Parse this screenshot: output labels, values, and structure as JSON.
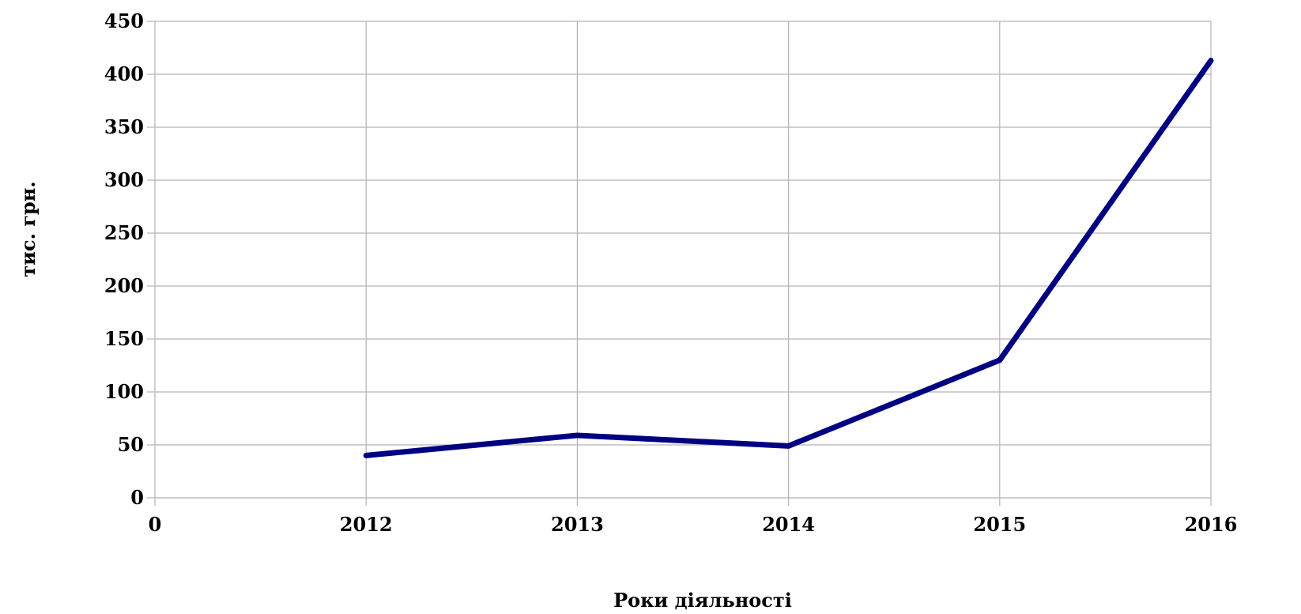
{
  "chart_data": {
    "type": "line",
    "title": "",
    "xlabel": "Роки діяльності",
    "ylabel": "тис. грн.",
    "x_ticks": [
      "0",
      "2012",
      "2013",
      "2014",
      "2015",
      "2016"
    ],
    "y_ticks": [
      "0",
      "50",
      "100",
      "150",
      "200",
      "250",
      "300",
      "350",
      "400",
      "450"
    ],
    "ylim": [
      0,
      450
    ],
    "grid": true,
    "legend": "none",
    "series": [
      {
        "color": "#000080",
        "points": [
          {
            "x": "2012",
            "y": 40
          },
          {
            "x": "2013",
            "y": 59
          },
          {
            "x": "2014",
            "y": 49
          },
          {
            "x": "2015",
            "y": 130
          },
          {
            "x": "2016",
            "y": 413
          }
        ]
      }
    ]
  }
}
